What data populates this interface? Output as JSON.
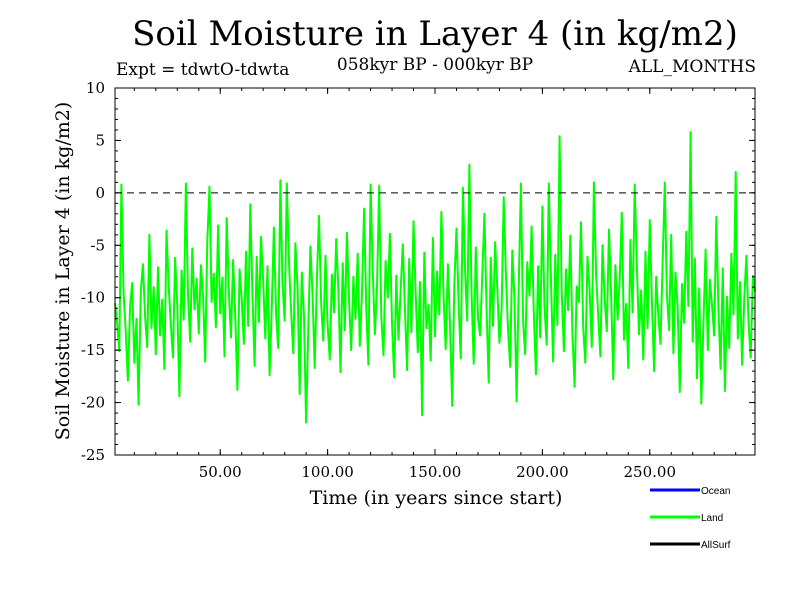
{
  "header": {
    "title": "Soil Moisture in Layer 4 (in kg/m2)",
    "experiment": "Expt = tdwtO-tdwta",
    "period": "058kyr BP - 000kyr BP",
    "season": "ALL_MONTHS"
  },
  "chart_data": {
    "type": "line",
    "title": "Soil Moisture in Layer 4 (in kg/m2)",
    "xlabel": "Time (in years since start)",
    "ylabel": "Soil Moisture in Layer 4 (in kg/m2)",
    "xlim": [
      1,
      299
    ],
    "ylim": [
      -25,
      10
    ],
    "x_ticks": [
      50,
      100,
      150,
      200,
      250
    ],
    "x_tick_labels": [
      "50.00",
      "100.00",
      "150.00",
      "200.00",
      "250.00"
    ],
    "y_ticks": [
      -25,
      -20,
      -15,
      -10,
      -5,
      0,
      5,
      10
    ],
    "y_tick_labels": [
      "-25",
      "-20",
      "-15",
      "-10",
      "-5",
      "0",
      "5",
      "10"
    ],
    "reference_line": 0,
    "legend_position": "bottom-right",
    "series": [
      {
        "name": "Land",
        "color": "#00ff00",
        "x_start": 1,
        "x_step": 1,
        "values": [
          -10.5,
          -12.4,
          -15.1,
          0.8,
          -9.6,
          -13.2,
          -17.9,
          -11.0,
          -8.6,
          -16.2,
          -12.0,
          -20.2,
          -9.4,
          -6.8,
          -11.8,
          -14.7,
          -4.0,
          -12.9,
          -9.0,
          -15.4,
          -7.1,
          -13.6,
          -10.2,
          -16.8,
          -3.6,
          -8.9,
          -12.5,
          -15.7,
          -6.2,
          -10.8,
          -19.4,
          -7.4,
          -12.1,
          0.9,
          -9.7,
          -14.2,
          -5.3,
          -11.1,
          -8.2,
          -13.4,
          -6.9,
          -9.9,
          -16.1,
          -4.6,
          0.6,
          -10.4,
          -7.7,
          -12.8,
          -3.1,
          -11.5,
          -8.1,
          -15.6,
          -2.4,
          -9.3,
          -13.8,
          -6.4,
          -11.9,
          -18.8,
          -7.3,
          -10.1,
          -14.4,
          -5.6,
          -12.7,
          -1.1,
          -9.5,
          -16.5,
          -6.1,
          -12.3,
          -4.2,
          -8.4,
          -13.9,
          -7.0,
          -17.4,
          -10.9,
          -3.3,
          -11.6,
          -14.8,
          1.2,
          -8.7,
          -12.2,
          0.9,
          -6.6,
          -11.3,
          -15.3,
          -4.8,
          -9.1,
          -19.2,
          -7.6,
          -11.7,
          -21.9,
          -13.0,
          -5.1,
          -9.8,
          -16.7,
          -8.3,
          -2.2,
          -10.6,
          -14.1,
          -6.0,
          -12.6,
          -15.9,
          -7.8,
          -11.4,
          -4.4,
          -9.2,
          -17.1,
          -6.7,
          -13.1,
          -3.8,
          -10.3,
          -15.0,
          -8.0,
          -12.0,
          -5.8,
          -14.6,
          -9.6,
          -1.5,
          -11.2,
          -16.4,
          0.8,
          -7.2,
          -13.5,
          -9.0,
          0.7,
          -11.8,
          -15.5,
          -6.5,
          -10.0,
          -3.9,
          -12.4,
          -17.6,
          -7.9,
          -14.0,
          -9.4,
          -4.9,
          -11.0,
          -16.9,
          -6.3,
          -13.3,
          -2.7,
          -9.7,
          -15.2,
          -8.5,
          -21.2,
          -5.7,
          -12.9,
          -10.7,
          -16.0,
          -4.3,
          -13.7,
          -7.5,
          -11.6,
          -1.8,
          -9.9,
          -14.9,
          -6.8,
          -12.5,
          -20.3,
          -8.8,
          -3.4,
          -10.5,
          -15.8,
          0.5,
          -7.4,
          -12.2,
          2.7,
          -9.3,
          -16.3,
          -5.2,
          -11.9,
          -13.6,
          -8.1,
          -2.0,
          -10.8,
          -18.1,
          -6.2,
          -12.7,
          -4.7,
          -9.0,
          -14.3,
          -11.1,
          -0.4,
          -7.7,
          -13.0,
          -16.6,
          -5.5,
          -10.2,
          -19.9,
          -8.6,
          0.9,
          -12.3,
          -15.4,
          -6.6,
          -9.8,
          -3.2,
          -11.5,
          -17.3,
          -7.0,
          -13.8,
          -1.3,
          -10.9,
          -14.5,
          0.9,
          -8.4,
          -16.1,
          -5.9,
          -12.6,
          5.4,
          -9.5,
          -15.1,
          -7.3,
          -11.2,
          -4.1,
          -13.4,
          -18.5,
          -8.9,
          -10.4,
          -2.8,
          -12.8,
          -16.2,
          -6.1,
          -9.2,
          -14.7,
          1.0,
          -7.8,
          -11.7,
          -15.6,
          -5.0,
          -10.1,
          -13.2,
          -3.5,
          -9.6,
          -17.8,
          -6.9,
          -12.1,
          -8.2,
          -1.9,
          -14.0,
          -10.6,
          -16.7,
          -4.5,
          -11.4,
          0.8,
          -7.1,
          -13.5,
          -9.3,
          -15.9,
          -5.6,
          -12.9,
          -2.6,
          -10.3,
          -17.0,
          -8.0,
          -11.8,
          -14.4,
          -6.4,
          1.0,
          -9.7,
          -13.1,
          -4.0,
          -15.3,
          -7.6,
          -11.0,
          -19.0,
          -8.7,
          -12.4,
          -3.7,
          -10.8,
          5.8,
          -14.2,
          -6.3,
          -17.7,
          -9.1,
          -20.1,
          -12.2,
          -5.4,
          -15.0,
          -8.3,
          -10.7,
          -13.6,
          -2.3,
          -11.3,
          -16.8,
          -7.2,
          -18.9,
          -9.9,
          -14.8,
          -5.8,
          -11.6,
          2.0,
          -13.9,
          -8.5,
          -16.4,
          -10.0,
          -6.0,
          -12.5,
          -15.7,
          -7.9,
          -9.4
        ]
      },
      {
        "name": "Ocean",
        "color": "#0000ff",
        "values": []
      },
      {
        "name": "AllSurf",
        "color": "#000000",
        "values": []
      }
    ]
  },
  "legend": {
    "entries": [
      {
        "label": "Ocean",
        "color": "#0000ff"
      },
      {
        "label": "Land",
        "color": "#00ff00"
      },
      {
        "label": "AllSurf",
        "color": "#000000"
      }
    ]
  }
}
